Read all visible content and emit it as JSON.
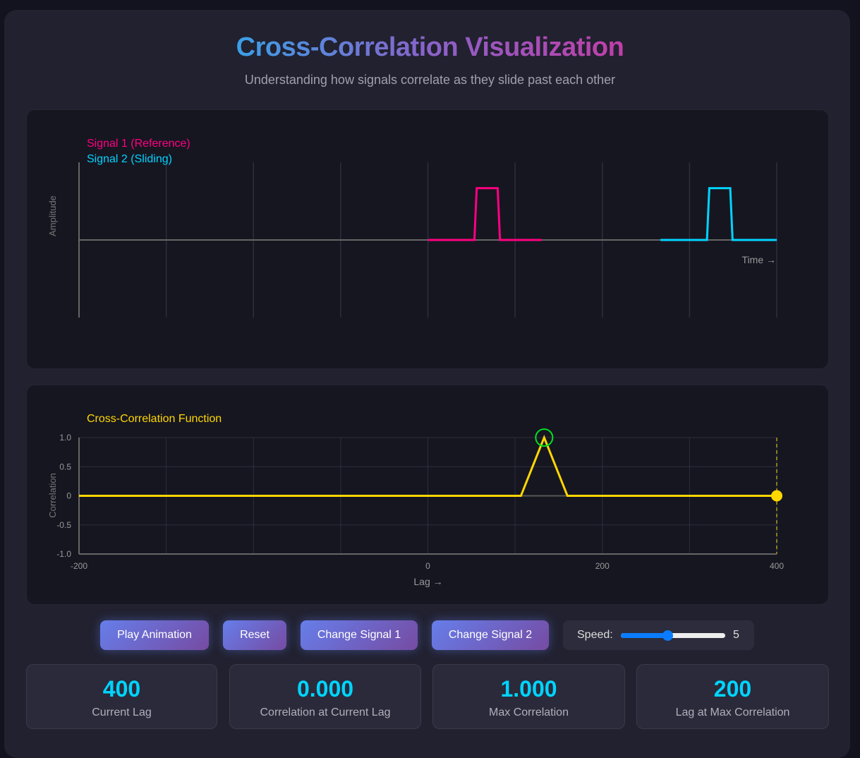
{
  "header": {
    "title": "Cross-Correlation Visualization",
    "subtitle": "Understanding how signals correlate as they slide past each other"
  },
  "chart_data": [
    {
      "type": "line",
      "legend": [
        "Signal 1 (Reference)",
        "Signal 2 (Sliding)"
      ],
      "xlabel": "Time →",
      "ylabel": "Amplitude",
      "ylim": [
        -1.5,
        1.5
      ],
      "xlim": [
        0,
        300
      ],
      "grid": true,
      "series": [
        {
          "name": "Signal 1 (Reference)",
          "color": "#ff0080",
          "x": [
            150,
            170,
            171,
            180,
            181,
            199
          ],
          "y": [
            0,
            0,
            1,
            1,
            0,
            0
          ]
        },
        {
          "name": "Signal 2 (Sliding)",
          "color": "#00d4ff",
          "x": [
            250,
            270,
            271,
            280,
            281,
            300
          ],
          "y": [
            0,
            0,
            1,
            1,
            0,
            0
          ]
        }
      ]
    },
    {
      "type": "line",
      "title": "Cross-Correlation Function",
      "xlabel": "Lag →",
      "ylabel": "Correlation",
      "ylim": [
        -1,
        1
      ],
      "xlim": [
        -200,
        400
      ],
      "grid": true,
      "yticks": [
        "1.0",
        "0.5",
        "0",
        "-0.5",
        "-1.0"
      ],
      "xticks": [
        "-200",
        "0",
        "200",
        "400"
      ],
      "color": "#ffd700",
      "series": [
        {
          "x": [
            -200,
            180,
            200,
            220,
            400
          ],
          "y": [
            0,
            0,
            1,
            0,
            0
          ]
        }
      ],
      "max_marker": {
        "lag": 200,
        "value": 1.0,
        "color": "#00e020"
      },
      "current_marker": {
        "lag": 400,
        "value": 0
      }
    }
  ],
  "controls": {
    "play": "Play Animation",
    "reset": "Reset",
    "change1": "Change Signal 1",
    "change2": "Change Signal 2",
    "speed_label": "Speed:",
    "speed_value": "5",
    "speed_min": 1,
    "speed_max": 10
  },
  "stats": [
    {
      "value": "400",
      "label": "Current Lag"
    },
    {
      "value": "0.000",
      "label": "Correlation at Current Lag"
    },
    {
      "value": "1.000",
      "label": "Max Correlation"
    },
    {
      "value": "200",
      "label": "Lag at Max Correlation"
    }
  ]
}
